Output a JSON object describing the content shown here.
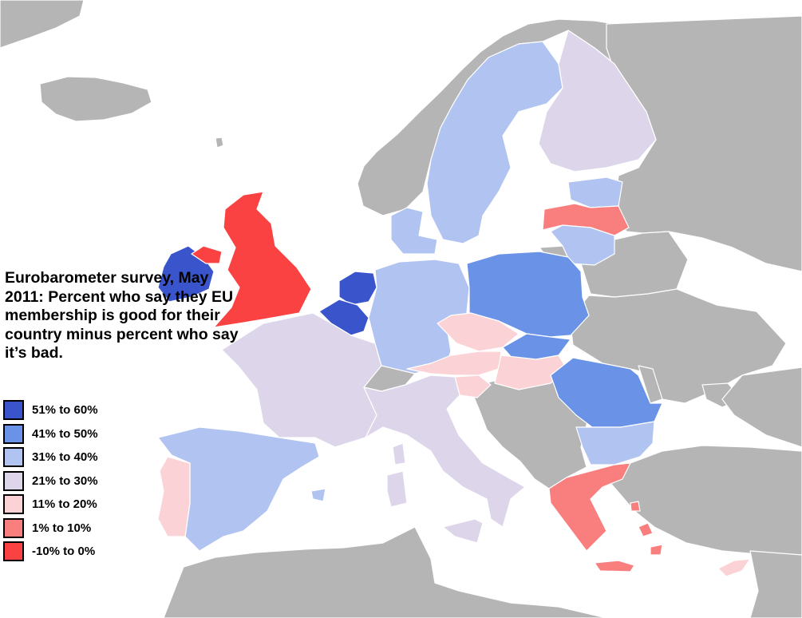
{
  "legend": {
    "title": "Eurobarometer survey, May 2011: Percent who say they EU membership is good for their country minus percent who say it’s bad.",
    "entries": [
      {
        "label": "51% to 60%",
        "color": "#3a55cc"
      },
      {
        "label": "41% to 50%",
        "color": "#6a93e8"
      },
      {
        "label": "31% to 40%",
        "color": "#b1c3f1"
      },
      {
        "label": "21% to 30%",
        "color": "#ddd6ea"
      },
      {
        "label": "11% to 20%",
        "color": "#fbd3d6"
      },
      {
        "label": "1% to 10%",
        "color": "#f97f7f"
      },
      {
        "label": "-10% to 0%",
        "color": "#fb4242"
      }
    ]
  },
  "colors": {
    "sea": "#ffffff",
    "non_eu_land": "#b5b5b5",
    "border": "#ffffff"
  },
  "regions": [
    {
      "name": "Ireland",
      "bin": 0
    },
    {
      "name": "Netherlands",
      "bin": 0
    },
    {
      "name": "Belgium",
      "bin": 0
    },
    {
      "name": "Poland",
      "bin": 1
    },
    {
      "name": "Slovakia",
      "bin": 1
    },
    {
      "name": "Romania",
      "bin": 1
    },
    {
      "name": "Sweden",
      "bin": 2
    },
    {
      "name": "Denmark",
      "bin": 2
    },
    {
      "name": "Estonia",
      "bin": 2
    },
    {
      "name": "Lithuania",
      "bin": 2
    },
    {
      "name": "Germany",
      "bin": 2
    },
    {
      "name": "Spain",
      "bin": 2
    },
    {
      "name": "Bulgaria",
      "bin": 2
    },
    {
      "name": "Finland",
      "bin": 3
    },
    {
      "name": "France",
      "bin": 3
    },
    {
      "name": "Italy",
      "bin": 3
    },
    {
      "name": "Portugal",
      "bin": 4
    },
    {
      "name": "Czech Republic",
      "bin": 4
    },
    {
      "name": "Austria",
      "bin": 4
    },
    {
      "name": "Hungary",
      "bin": 4
    },
    {
      "name": "Slovenia",
      "bin": 4
    },
    {
      "name": "Cyprus",
      "bin": 4
    },
    {
      "name": "Latvia",
      "bin": 5
    },
    {
      "name": "Greece",
      "bin": 5
    },
    {
      "name": "Northern Ireland",
      "bin": 6
    },
    {
      "name": "United Kingdom",
      "bin": 6
    }
  ]
}
